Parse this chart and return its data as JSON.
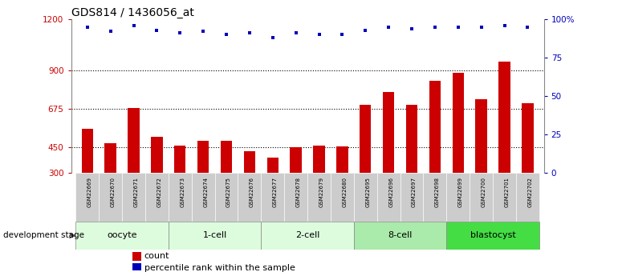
{
  "title": "GDS814 / 1436056_at",
  "samples": [
    "GSM22669",
    "GSM22670",
    "GSM22671",
    "GSM22672",
    "GSM22673",
    "GSM22674",
    "GSM22675",
    "GSM22676",
    "GSM22677",
    "GSM22678",
    "GSM22679",
    "GSM22680",
    "GSM22695",
    "GSM22696",
    "GSM22697",
    "GSM22698",
    "GSM22699",
    "GSM22700",
    "GSM22701",
    "GSM22702"
  ],
  "counts": [
    560,
    475,
    680,
    510,
    460,
    490,
    490,
    425,
    390,
    450,
    460,
    455,
    700,
    775,
    700,
    840,
    885,
    730,
    950,
    710
  ],
  "percentiles": [
    95,
    92,
    96,
    93,
    91,
    92,
    90,
    91,
    88,
    91,
    90,
    90,
    93,
    95,
    94,
    95,
    95,
    95,
    96,
    95
  ],
  "groups": [
    {
      "name": "oocyte",
      "start": 0,
      "end": 4,
      "color": "#ddfcdd"
    },
    {
      "name": "1-cell",
      "start": 4,
      "end": 8,
      "color": "#ddfcdd"
    },
    {
      "name": "2-cell",
      "start": 8,
      "end": 12,
      "color": "#ddfcdd"
    },
    {
      "name": "8-cell",
      "start": 12,
      "end": 16,
      "color": "#aaeaaa"
    },
    {
      "name": "blastocyst",
      "start": 16,
      "end": 20,
      "color": "#44dd44"
    }
  ],
  "ylim_left": [
    300,
    1200
  ],
  "ylim_right": [
    0,
    100
  ],
  "yticks_left": [
    300,
    450,
    675,
    900,
    1200
  ],
  "yticks_right": [
    0,
    25,
    50,
    75,
    100
  ],
  "grid_lines": [
    450,
    675,
    900
  ],
  "bar_color": "#cc0000",
  "dot_color": "#0000bb",
  "bg_color": "#ffffff",
  "sample_box_color": "#cccccc",
  "title_fontsize": 10,
  "bar_width": 0.5,
  "dev_stage_label": "development stage",
  "legend_count": "count",
  "legend_pct": "percentile rank within the sample",
  "legend_count_color": "#cc0000",
  "legend_pct_color": "#0000bb"
}
